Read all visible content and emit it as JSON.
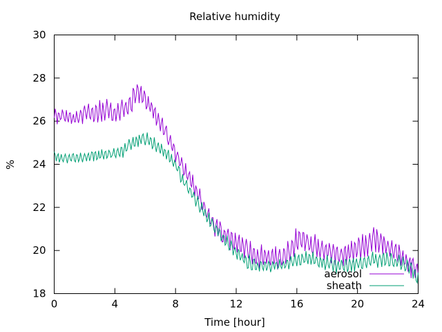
{
  "chart_data": {
    "type": "line",
    "title": "Relative humidity",
    "xlabel": "Time [hour]",
    "ylabel": "%",
    "xlim": [
      0,
      24
    ],
    "ylim": [
      18,
      30
    ],
    "xticks": [
      0,
      4,
      8,
      12,
      16,
      20,
      24
    ],
    "yticks": [
      18,
      20,
      22,
      24,
      26,
      28,
      30
    ],
    "grid": false,
    "legend_position": "bottom-right",
    "series": [
      {
        "name": "aerosol",
        "color": "#9400d3",
        "x": [
          0,
          0.5,
          1,
          1.5,
          2,
          2.5,
          3,
          3.5,
          4,
          4.5,
          5,
          5.5,
          6,
          6.5,
          7,
          7.5,
          8,
          8.5,
          9,
          9.5,
          10,
          10.5,
          11,
          11.5,
          12,
          12.5,
          13,
          13.5,
          14,
          14.5,
          15,
          15.5,
          16,
          16.5,
          17,
          17.5,
          18,
          18.5,
          19,
          19.5,
          20,
          20.5,
          21,
          21.5,
          22,
          22.5,
          23,
          23.5,
          24
        ],
        "y": [
          26.2,
          26.3,
          26.1,
          26.2,
          26.4,
          26.3,
          26.4,
          26.5,
          26.3,
          26.5,
          26.8,
          27.4,
          27.0,
          26.5,
          25.9,
          25.3,
          24.5,
          23.9,
          23.3,
          22.6,
          21.8,
          21.2,
          20.8,
          20.6,
          20.3,
          20.1,
          19.9,
          19.7,
          19.7,
          19.6,
          19.7,
          20.0,
          20.5,
          20.4,
          20.3,
          20.1,
          19.9,
          19.8,
          19.8,
          19.9,
          20.1,
          20.2,
          20.5,
          20.4,
          20.1,
          19.9,
          19.6,
          19.3,
          19.1
        ],
        "amplitude": [
          0.35,
          0.35,
          0.35,
          0.4,
          0.45,
          0.45,
          0.5,
          0.5,
          0.45,
          0.45,
          0.5,
          0.5,
          0.45,
          0.45,
          0.4,
          0.4,
          0.4,
          0.4,
          0.4,
          0.4,
          0.4,
          0.45,
          0.5,
          0.5,
          0.55,
          0.55,
          0.55,
          0.55,
          0.5,
          0.5,
          0.55,
          0.55,
          0.55,
          0.55,
          0.55,
          0.5,
          0.5,
          0.5,
          0.5,
          0.55,
          0.55,
          0.55,
          0.6,
          0.55,
          0.55,
          0.55,
          0.5,
          0.5,
          0.5
        ]
      },
      {
        "name": "sheath",
        "color": "#009e73",
        "x": [
          0,
          0.5,
          1,
          1.5,
          2,
          2.5,
          3,
          3.5,
          4,
          4.5,
          5,
          5.5,
          6,
          6.5,
          7,
          7.5,
          8,
          8.5,
          9,
          9.5,
          10,
          10.5,
          11,
          11.5,
          12,
          12.5,
          13,
          13.5,
          14,
          14.5,
          15,
          15.5,
          16,
          16.5,
          17,
          17.5,
          18,
          18.5,
          19,
          19.5,
          20,
          20.5,
          21,
          21.5,
          22,
          22.5,
          23,
          23.5,
          24
        ],
        "y": [
          24.4,
          24.3,
          24.3,
          24.3,
          24.3,
          24.4,
          24.4,
          24.5,
          24.5,
          24.6,
          24.9,
          25.1,
          25.2,
          25.0,
          24.7,
          24.4,
          23.9,
          23.3,
          22.7,
          22.2,
          21.6,
          21.2,
          20.7,
          20.3,
          19.9,
          19.6,
          19.4,
          19.3,
          19.3,
          19.3,
          19.3,
          19.4,
          19.6,
          19.6,
          19.6,
          19.5,
          19.4,
          19.3,
          19.3,
          19.3,
          19.4,
          19.5,
          19.6,
          19.6,
          19.5,
          19.5,
          19.4,
          19.2,
          18.7
        ],
        "amplitude": [
          0.25,
          0.25,
          0.25,
          0.25,
          0.25,
          0.25,
          0.25,
          0.25,
          0.25,
          0.3,
          0.3,
          0.3,
          0.3,
          0.3,
          0.3,
          0.3,
          0.3,
          0.3,
          0.3,
          0.3,
          0.3,
          0.3,
          0.3,
          0.3,
          0.3,
          0.35,
          0.35,
          0.35,
          0.3,
          0.3,
          0.3,
          0.3,
          0.3,
          0.35,
          0.35,
          0.35,
          0.35,
          0.35,
          0.35,
          0.35,
          0.35,
          0.35,
          0.4,
          0.4,
          0.4,
          0.4,
          0.4,
          0.4,
          0.4
        ]
      }
    ]
  }
}
